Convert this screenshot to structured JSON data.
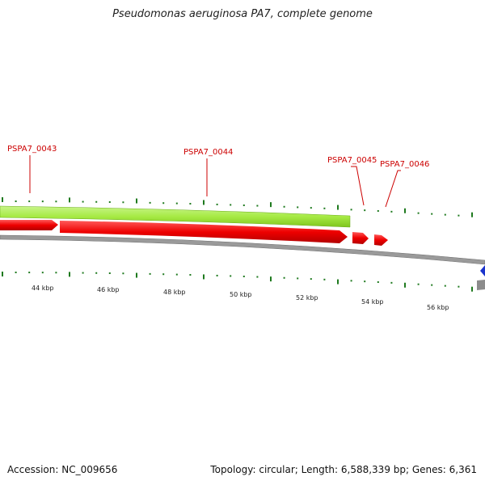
{
  "title": "Pseudomonas aeruginosa PA7, complete genome",
  "footer": {
    "accession": "Accession: NC_009656",
    "summary": "Topology: circular; Length: 6,588,339 bp; Genes: 6,361"
  },
  "genes": [
    {
      "locus": "PSPA7_0043"
    },
    {
      "locus": "PSPA7_0044"
    },
    {
      "locus": "PSPA7_0045"
    },
    {
      "locus": "PSPA7_0046"
    }
  ],
  "scale_labels": [
    "44 kbp",
    "46 kbp",
    "48 kbp",
    "50 kbp",
    "52 kbp",
    "54 kbp",
    "56 kbp"
  ],
  "colors": {
    "gene_label": "#cc0000",
    "cds": "#ee0000",
    "feature_track": "#99e633",
    "backbone": "#8c8c8c",
    "ticks": "#1f7a1f",
    "marker": "#1a33cc"
  }
}
